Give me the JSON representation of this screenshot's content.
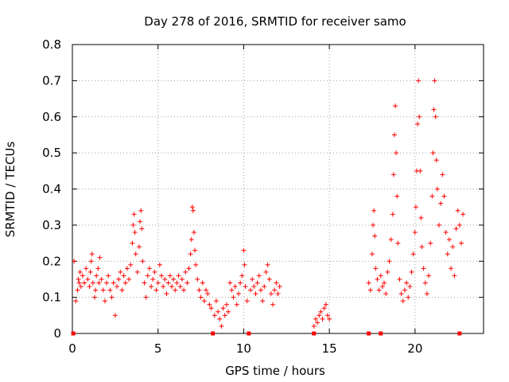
{
  "chart_data": {
    "type": "scatter",
    "title": "Day 278 of 2016, SRMTID for receiver samo",
    "xlabel": "GPS time / hours",
    "ylabel": "SRMTID / TECUs",
    "xlim": [
      0,
      24
    ],
    "ylim": [
      0,
      0.8
    ],
    "xticks": [
      0,
      5,
      10,
      15,
      20
    ],
    "yticks": [
      0,
      0.1,
      0.2,
      0.3,
      0.4,
      0.5,
      0.6,
      0.7,
      0.8
    ],
    "xtick_labels": [
      "0",
      "5",
      "10",
      "15",
      "20"
    ],
    "ytick_labels": [
      "0",
      "0.1",
      "0.2",
      "0.3",
      "0.4",
      "0.5",
      "0.6",
      "0.7",
      "0.8"
    ],
    "grid": true,
    "marker": "+",
    "color": "#ff0000",
    "data_gaps_at_zero": [
      0.05,
      8.2,
      10.3,
      14.1,
      17.3,
      18.0,
      22.6
    ],
    "series": [
      {
        "name": "SRMTID",
        "points": [
          [
            0.1,
            0.2
          ],
          [
            0.2,
            0.09
          ],
          [
            0.3,
            0.12
          ],
          [
            0.35,
            0.15
          ],
          [
            0.4,
            0.14
          ],
          [
            0.45,
            0.17
          ],
          [
            0.5,
            0.13
          ],
          [
            0.6,
            0.16
          ],
          [
            0.7,
            0.14
          ],
          [
            0.8,
            0.18
          ],
          [
            0.9,
            0.15
          ],
          [
            1.0,
            0.13
          ],
          [
            1.05,
            0.17
          ],
          [
            1.1,
            0.2
          ],
          [
            1.15,
            0.22
          ],
          [
            1.2,
            0.14
          ],
          [
            1.3,
            0.1
          ],
          [
            1.35,
            0.12
          ],
          [
            1.4,
            0.16
          ],
          [
            1.5,
            0.18
          ],
          [
            1.55,
            0.14
          ],
          [
            1.6,
            0.21
          ],
          [
            1.7,
            0.15
          ],
          [
            1.8,
            0.12
          ],
          [
            1.9,
            0.09
          ],
          [
            2.0,
            0.14
          ],
          [
            2.1,
            0.16
          ],
          [
            2.2,
            0.12
          ],
          [
            2.3,
            0.1
          ],
          [
            2.4,
            0.14
          ],
          [
            2.5,
            0.05
          ],
          [
            2.6,
            0.13
          ],
          [
            2.7,
            0.15
          ],
          [
            2.8,
            0.17
          ],
          [
            2.9,
            0.12
          ],
          [
            3.0,
            0.16
          ],
          [
            3.1,
            0.14
          ],
          [
            3.2,
            0.18
          ],
          [
            3.3,
            0.15
          ],
          [
            3.4,
            0.19
          ],
          [
            3.5,
            0.25
          ],
          [
            3.55,
            0.3
          ],
          [
            3.6,
            0.33
          ],
          [
            3.65,
            0.28
          ],
          [
            3.7,
            0.22
          ],
          [
            3.8,
            0.17
          ],
          [
            3.9,
            0.24
          ],
          [
            3.95,
            0.31
          ],
          [
            4.0,
            0.34
          ],
          [
            4.05,
            0.29
          ],
          [
            4.1,
            0.2
          ],
          [
            4.2,
            0.14
          ],
          [
            4.3,
            0.1
          ],
          [
            4.4,
            0.16
          ],
          [
            4.5,
            0.18
          ],
          [
            4.6,
            0.13
          ],
          [
            4.7,
            0.15
          ],
          [
            4.8,
            0.17
          ],
          [
            4.9,
            0.12
          ],
          [
            5.0,
            0.14
          ],
          [
            5.1,
            0.19
          ],
          [
            5.2,
            0.16
          ],
          [
            5.3,
            0.13
          ],
          [
            5.4,
            0.15
          ],
          [
            5.5,
            0.11
          ],
          [
            5.6,
            0.14
          ],
          [
            5.7,
            0.16
          ],
          [
            5.8,
            0.13
          ],
          [
            5.9,
            0.15
          ],
          [
            6.0,
            0.12
          ],
          [
            6.1,
            0.14
          ],
          [
            6.2,
            0.16
          ],
          [
            6.3,
            0.13
          ],
          [
            6.4,
            0.15
          ],
          [
            6.5,
            0.12
          ],
          [
            6.6,
            0.17
          ],
          [
            6.7,
            0.14
          ],
          [
            6.8,
            0.18
          ],
          [
            6.9,
            0.22
          ],
          [
            6.95,
            0.26
          ],
          [
            7.0,
            0.35
          ],
          [
            7.05,
            0.34
          ],
          [
            7.1,
            0.28
          ],
          [
            7.15,
            0.23
          ],
          [
            7.2,
            0.19
          ],
          [
            7.3,
            0.15
          ],
          [
            7.4,
            0.12
          ],
          [
            7.5,
            0.1
          ],
          [
            7.6,
            0.14
          ],
          [
            7.7,
            0.09
          ],
          [
            7.8,
            0.12
          ],
          [
            7.9,
            0.11
          ],
          [
            8.0,
            0.08
          ],
          [
            8.1,
            0.07
          ],
          [
            8.3,
            0.05
          ],
          [
            8.4,
            0.09
          ],
          [
            8.5,
            0.06
          ],
          [
            8.6,
            0.04
          ],
          [
            8.7,
            0.02
          ],
          [
            8.8,
            0.07
          ],
          [
            8.9,
            0.05
          ],
          [
            9.0,
            0.08
          ],
          [
            9.1,
            0.06
          ],
          [
            9.2,
            0.14
          ],
          [
            9.3,
            0.12
          ],
          [
            9.4,
            0.1
          ],
          [
            9.5,
            0.13
          ],
          [
            9.6,
            0.08
          ],
          [
            9.7,
            0.11
          ],
          [
            9.8,
            0.14
          ],
          [
            9.9,
            0.16
          ],
          [
            10.0,
            0.23
          ],
          [
            10.05,
            0.19
          ],
          [
            10.1,
            0.13
          ],
          [
            10.2,
            0.09
          ],
          [
            10.4,
            0.12
          ],
          [
            10.5,
            0.15
          ],
          [
            10.6,
            0.13
          ],
          [
            10.7,
            0.11
          ],
          [
            10.8,
            0.14
          ],
          [
            10.9,
            0.16
          ],
          [
            11.0,
            0.12
          ],
          [
            11.1,
            0.09
          ],
          [
            11.2,
            0.13
          ],
          [
            11.3,
            0.17
          ],
          [
            11.4,
            0.19
          ],
          [
            11.5,
            0.15
          ],
          [
            11.6,
            0.11
          ],
          [
            11.7,
            0.08
          ],
          [
            11.8,
            0.12
          ],
          [
            11.9,
            0.14
          ],
          [
            12.0,
            0.11
          ],
          [
            12.1,
            0.13
          ],
          [
            14.1,
            0.02
          ],
          [
            14.2,
            0.04
          ],
          [
            14.3,
            0.03
          ],
          [
            14.4,
            0.05
          ],
          [
            14.5,
            0.06
          ],
          [
            14.6,
            0.04
          ],
          [
            14.7,
            0.07
          ],
          [
            14.8,
            0.08
          ],
          [
            14.9,
            0.05
          ],
          [
            15.0,
            0.04
          ],
          [
            17.3,
            0.14
          ],
          [
            17.4,
            0.12
          ],
          [
            17.5,
            0.22
          ],
          [
            17.55,
            0.3
          ],
          [
            17.6,
            0.34
          ],
          [
            17.65,
            0.27
          ],
          [
            17.7,
            0.18
          ],
          [
            17.8,
            0.15
          ],
          [
            17.9,
            0.12
          ],
          [
            18.0,
            0.16
          ],
          [
            18.1,
            0.13
          ],
          [
            18.2,
            0.14
          ],
          [
            18.3,
            0.11
          ],
          [
            18.4,
            0.17
          ],
          [
            18.5,
            0.2
          ],
          [
            18.6,
            0.26
          ],
          [
            18.7,
            0.33
          ],
          [
            18.75,
            0.44
          ],
          [
            18.8,
            0.55
          ],
          [
            18.85,
            0.63
          ],
          [
            18.9,
            0.5
          ],
          [
            18.95,
            0.38
          ],
          [
            19.0,
            0.25
          ],
          [
            19.1,
            0.15
          ],
          [
            19.2,
            0.11
          ],
          [
            19.3,
            0.09
          ],
          [
            19.4,
            0.12
          ],
          [
            19.5,
            0.14
          ],
          [
            19.6,
            0.1
          ],
          [
            19.7,
            0.13
          ],
          [
            19.8,
            0.17
          ],
          [
            19.9,
            0.22
          ],
          [
            20.0,
            0.28
          ],
          [
            20.05,
            0.35
          ],
          [
            20.1,
            0.45
          ],
          [
            20.15,
            0.58
          ],
          [
            20.2,
            0.7
          ],
          [
            20.25,
            0.6
          ],
          [
            20.3,
            0.45
          ],
          [
            20.35,
            0.32
          ],
          [
            20.4,
            0.24
          ],
          [
            20.5,
            0.18
          ],
          [
            20.6,
            0.14
          ],
          [
            20.7,
            0.11
          ],
          [
            20.8,
            0.16
          ],
          [
            20.9,
            0.25
          ],
          [
            21.0,
            0.38
          ],
          [
            21.05,
            0.5
          ],
          [
            21.1,
            0.62
          ],
          [
            21.15,
            0.7
          ],
          [
            21.2,
            0.6
          ],
          [
            21.25,
            0.48
          ],
          [
            21.3,
            0.4
          ],
          [
            21.4,
            0.3
          ],
          [
            21.5,
            0.36
          ],
          [
            21.6,
            0.44
          ],
          [
            21.7,
            0.38
          ],
          [
            21.8,
            0.28
          ],
          [
            21.9,
            0.22
          ],
          [
            22.0,
            0.26
          ],
          [
            22.1,
            0.18
          ],
          [
            22.2,
            0.24
          ],
          [
            22.3,
            0.16
          ],
          [
            22.4,
            0.29
          ],
          [
            22.5,
            0.34
          ],
          [
            22.6,
            0.3
          ],
          [
            22.7,
            0.25
          ],
          [
            22.8,
            0.33
          ]
        ]
      }
    ]
  }
}
